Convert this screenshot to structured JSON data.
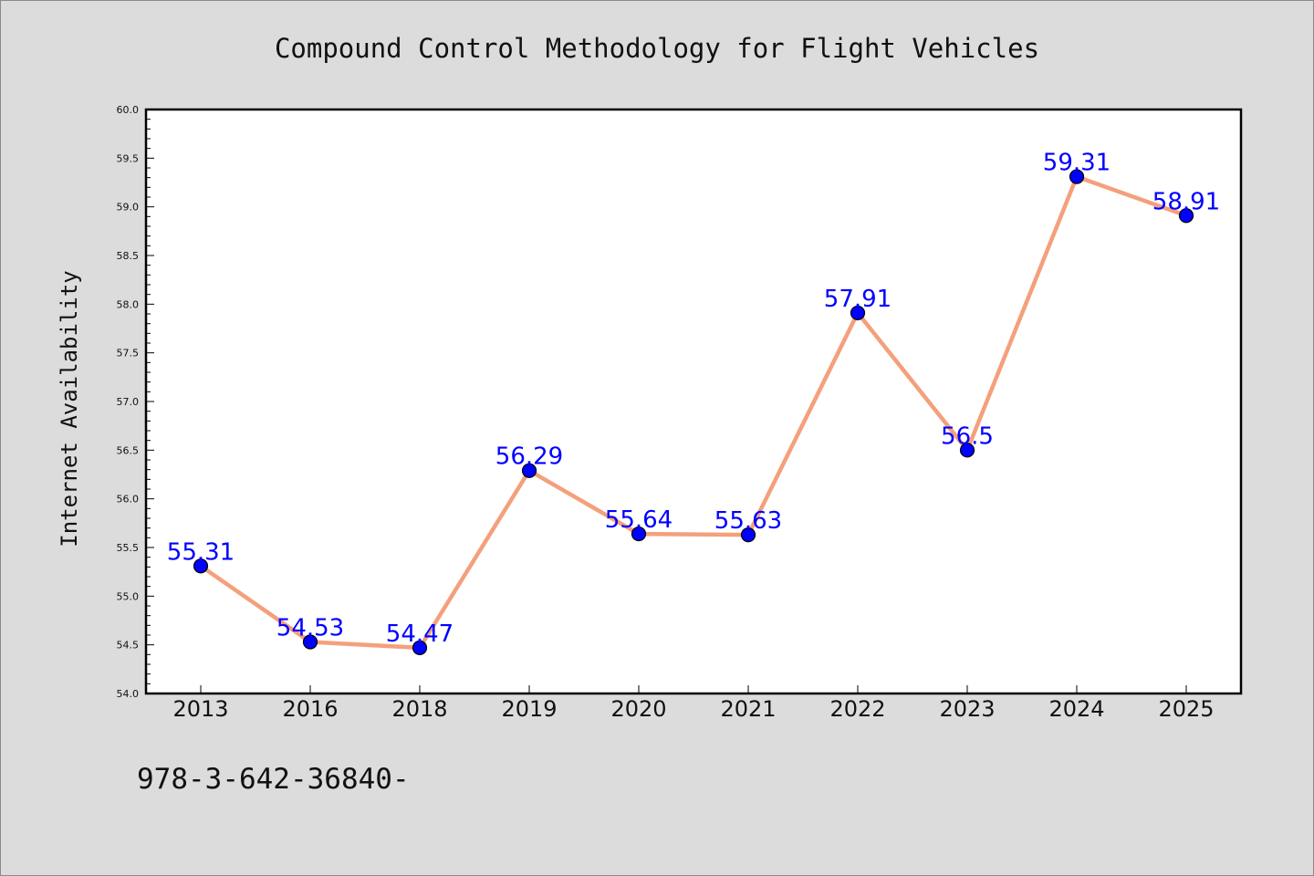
{
  "chart_data": {
    "type": "line",
    "title": "Compound Control Methodology for Flight Vehicles",
    "ylabel": "Internet Availability",
    "xlabel": "",
    "categories": [
      "2013",
      "2016",
      "2018",
      "2019",
      "2020",
      "2021",
      "2022",
      "2023",
      "2024",
      "2025"
    ],
    "values": [
      55.31,
      54.53,
      54.47,
      56.29,
      55.64,
      55.63,
      57.91,
      56.5,
      59.31,
      58.91
    ],
    "data_labels": [
      "55.31",
      "54.53",
      "54.47",
      "56.29",
      "55.64",
      "55.63",
      "57.91",
      "56.5",
      "59.31",
      "58.91"
    ],
    "ylim": [
      54.0,
      60.0
    ],
    "ytick_step": 0.5,
    "ytick_labels": [
      "54.0",
      "54.5",
      "55.0",
      "55.5",
      "56.0",
      "56.5",
      "57.0",
      "57.5",
      "58.0",
      "58.5",
      "59.0",
      "59.5",
      "60.0"
    ],
    "grid": false,
    "legend": "none",
    "colors": {
      "line": "#f4a07c",
      "marker": "#0000ff",
      "marker_edge": "#000000",
      "data_label": "#0000ff",
      "plot_background": "#ffffff",
      "figure_background": "#dcdcdc"
    }
  },
  "footer": {
    "text": "978-3-642-36840-"
  }
}
